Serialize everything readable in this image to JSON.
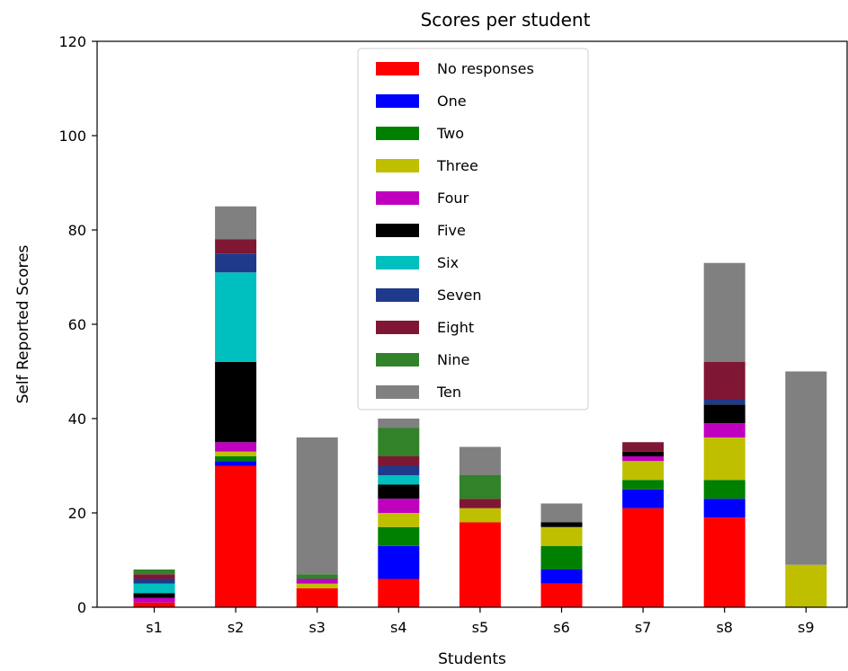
{
  "chart_data": {
    "type": "bar",
    "stacked": true,
    "title": "Scores per student",
    "xlabel": "Students",
    "ylabel": "Self Reported Scores",
    "ylim": [
      0,
      120
    ],
    "yticks": [
      0,
      20,
      40,
      60,
      80,
      100,
      120
    ],
    "grid": false,
    "legend_position": "top-center",
    "categories": [
      "s1",
      "s2",
      "s3",
      "s4",
      "s5",
      "s6",
      "s7",
      "s8",
      "s9"
    ],
    "series": [
      {
        "name": "No responses",
        "color": "#ff0000",
        "values": [
          1,
          30,
          4,
          6,
          18,
          5,
          21,
          19,
          0
        ]
      },
      {
        "name": "One",
        "color": "#0000ff",
        "values": [
          0,
          1,
          0,
          7,
          0,
          3,
          4,
          4,
          0
        ]
      },
      {
        "name": "Two",
        "color": "#008000",
        "values": [
          0,
          1,
          0,
          4,
          0,
          5,
          2,
          4,
          0
        ]
      },
      {
        "name": "Three",
        "color": "#bfbf00",
        "values": [
          0,
          1,
          1,
          3,
          3,
          4,
          4,
          9,
          9
        ]
      },
      {
        "name": "Four",
        "color": "#bf00bf",
        "values": [
          1,
          2,
          1,
          3,
          0,
          0,
          1,
          3,
          0
        ]
      },
      {
        "name": "Five",
        "color": "#000000",
        "values": [
          1,
          17,
          0,
          3,
          0,
          1,
          1,
          4,
          0
        ]
      },
      {
        "name": "Six",
        "color": "#00bfbf",
        "values": [
          2,
          19,
          0,
          2,
          0,
          0,
          0,
          0,
          0
        ]
      },
      {
        "name": "Seven",
        "color": "#1f3a8a",
        "values": [
          1,
          4,
          0,
          2,
          0,
          0,
          0,
          1,
          0
        ]
      },
      {
        "name": "Eight",
        "color": "#7f1734",
        "values": [
          1,
          3,
          0,
          2,
          2,
          0,
          2,
          8,
          0
        ]
      },
      {
        "name": "Nine",
        "color": "#318228",
        "values": [
          1,
          0,
          1,
          6,
          5,
          0,
          0,
          0,
          0
        ]
      },
      {
        "name": "Ten",
        "color": "#808080",
        "values": [
          0,
          7,
          29,
          2,
          6,
          4,
          0,
          21,
          41
        ]
      }
    ]
  }
}
